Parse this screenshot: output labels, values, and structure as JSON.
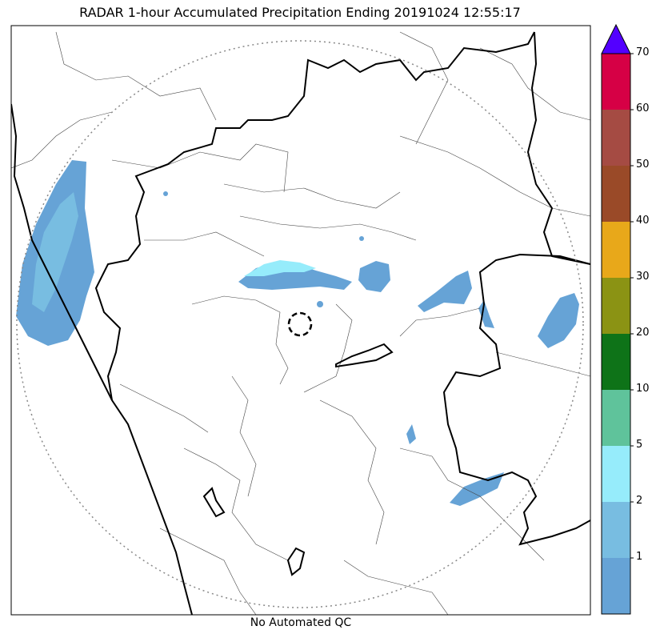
{
  "title": "RADAR 1-hour Accumulated Precipitation Ending 20191024 12:55:17",
  "footer": "No Automated QC",
  "colorbar": {
    "levels": [
      {
        "label": "",
        "color": "#66a3d6"
      },
      {
        "label": "1",
        "color": "#78bde1"
      },
      {
        "label": "2",
        "color": "#96ecfb"
      },
      {
        "label": "5",
        "color": "#5fc39b"
      },
      {
        "label": "10",
        "color": "#0e7318"
      },
      {
        "label": "20",
        "color": "#8b9314"
      },
      {
        "label": "30",
        "color": "#e8a81a"
      },
      {
        "label": "40",
        "color": "#9a4a28"
      },
      {
        "label": "50",
        "color": "#a54b43"
      },
      {
        "label": "60",
        "color": "#d60045"
      },
      {
        "label": "70",
        "color": "#5300ff"
      }
    ]
  }
}
